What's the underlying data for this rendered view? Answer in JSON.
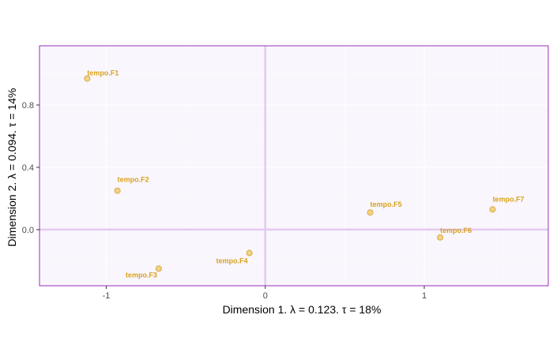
{
  "chart_data": {
    "type": "scatter",
    "title": "",
    "xlabel": "Dimension 1.   λ = 0.123.  τ = 18%",
    "ylabel": "Dimension 2.   λ = 0.094.  τ = 14%",
    "xlim": [
      -1.42,
      1.78
    ],
    "ylim": [
      -0.36,
      1.18
    ],
    "xticks": [
      -1,
      0,
      1
    ],
    "xtick_labels": [
      "-1",
      "0",
      "1"
    ],
    "yticks": [
      0.0,
      0.4,
      0.8
    ],
    "ytick_labels": [
      "0.0",
      "0.4",
      "0.8"
    ],
    "grid": true,
    "reference_lines": {
      "x": 0,
      "y": 0
    },
    "points": [
      {
        "label": "tempo.F1",
        "x": -1.12,
        "y": 0.97
      },
      {
        "label": "tempo.F2",
        "x": -0.93,
        "y": 0.25
      },
      {
        "label": "tempo.F3",
        "x": -0.67,
        "y": -0.25
      },
      {
        "label": "tempo.F4",
        "x": -0.1,
        "y": -0.15
      },
      {
        "label": "tempo.F5",
        "x": 0.66,
        "y": 0.11
      },
      {
        "label": "tempo.F6",
        "x": 1.1,
        "y": -0.05
      },
      {
        "label": "tempo.F7",
        "x": 1.43,
        "y": 0.13
      }
    ]
  },
  "colors": {
    "panel_background": "#f9f6fd",
    "panel_border": "#9b30b8",
    "grid": "#ffffff",
    "reference_line": "#e3c9f0",
    "point_fill": "#f2d28a",
    "point_stroke": "#d8ac3a",
    "label": "#d9a21e"
  }
}
